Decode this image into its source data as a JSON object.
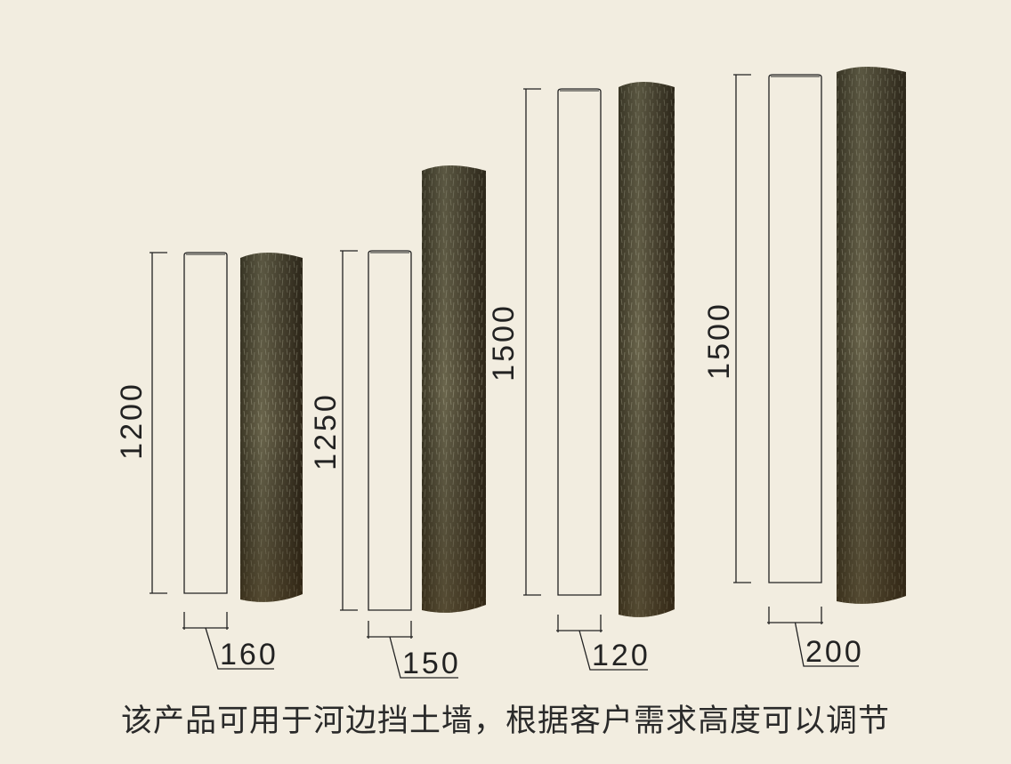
{
  "colors": {
    "background": "#f2ede0",
    "line": "#222222",
    "log_dark": "#3a3222",
    "log_mid": "#5a5238"
  },
  "posts": [
    {
      "height_label": "1200",
      "diameter_label": "160"
    },
    {
      "height_label": "1250",
      "diameter_label": "150"
    },
    {
      "height_label": "1500",
      "diameter_label": "120"
    },
    {
      "height_label": "1500",
      "diameter_label": "200"
    }
  ],
  "caption": "该产品可用于河边挡土墙，根据客户需求高度可以调节"
}
